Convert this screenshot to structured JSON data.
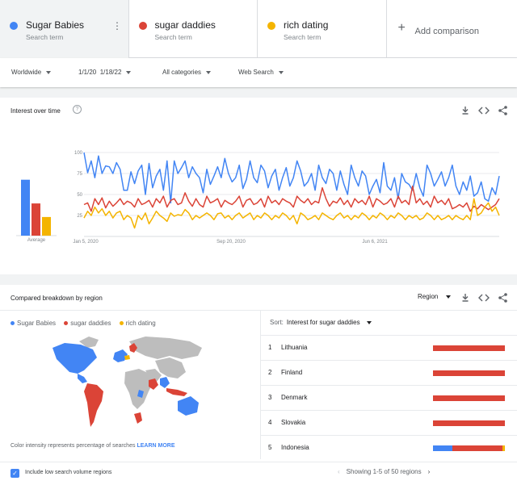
{
  "terms": [
    {
      "name": "Sugar Babies",
      "sub": "Search term",
      "color": "#4285f4"
    },
    {
      "name": "sugar daddies",
      "sub": "Search term",
      "color": "#db4437"
    },
    {
      "name": "rich dating",
      "sub": "Search term",
      "color": "#f4b400"
    }
  ],
  "add_comparison": "Add comparison",
  "filters": {
    "region": "Worldwide",
    "date_start": "1/1/20",
    "date_end": "1/18/22",
    "category": "All categories",
    "search_type": "Web Search"
  },
  "interest": {
    "title": "Interest over time",
    "help": "?",
    "average_label": "Average",
    "averages": [
      66,
      38,
      22
    ],
    "chart_data": {
      "type": "line",
      "x_ticks": [
        "Jan 5, 2020",
        "Sep 20, 2020",
        "Jun 6, 2021"
      ],
      "y_ticks": [
        100,
        75,
        50,
        25
      ],
      "ylim": [
        0,
        100
      ],
      "series": [
        {
          "name": "Sugar Babies",
          "color": "#4285f4",
          "values": [
            100,
            76,
            90,
            70,
            96,
            75,
            84,
            83,
            75,
            88,
            80,
            55,
            55,
            77,
            63,
            78,
            85,
            50,
            87,
            58,
            72,
            80,
            55,
            90,
            40,
            90,
            75,
            82,
            90,
            70,
            83,
            75,
            70,
            52,
            80,
            62,
            72,
            83,
            70,
            93,
            75,
            65,
            70,
            85,
            57,
            68,
            90,
            70,
            64,
            85,
            78,
            58,
            72,
            80,
            55,
            70,
            82,
            60,
            70,
            90,
            78,
            60,
            65,
            75,
            55,
            85,
            70,
            63,
            80,
            75,
            55,
            78,
            62,
            50,
            85,
            70,
            60,
            78,
            72,
            50,
            60,
            68,
            52,
            88,
            60,
            55,
            70,
            45,
            75,
            65,
            62,
            55,
            75,
            58,
            48,
            85,
            75,
            60,
            68,
            77,
            60,
            70,
            85,
            60,
            50,
            65,
            55,
            72,
            48,
            52,
            65,
            45,
            42,
            58,
            50,
            72
          ]
        },
        {
          "name": "sugar daddies",
          "color": "#db4437",
          "values": [
            38,
            40,
            30,
            45,
            38,
            46,
            34,
            42,
            36,
            40,
            45,
            38,
            42,
            40,
            35,
            45,
            38,
            40,
            43,
            35,
            45,
            40,
            48,
            35,
            43,
            45,
            38,
            40,
            52,
            42,
            36,
            45,
            38,
            35,
            48,
            40,
            42,
            45,
            35,
            43,
            40,
            38,
            42,
            48,
            35,
            43,
            45,
            38,
            40,
            45,
            35,
            48,
            40,
            43,
            38,
            45,
            42,
            40,
            35,
            48,
            43,
            40,
            45,
            38,
            42,
            40,
            58,
            45,
            36,
            42,
            40,
            46,
            38,
            43,
            35,
            45,
            40,
            43,
            38,
            48,
            35,
            45,
            42,
            38,
            40,
            45,
            35,
            48,
            40,
            43,
            38,
            60,
            40,
            45,
            38,
            42,
            35,
            48,
            40,
            43,
            38,
            45,
            33,
            35,
            38,
            35,
            40,
            30,
            36,
            33,
            38,
            35,
            32,
            35,
            38,
            45
          ]
        },
        {
          "name": "rich dating",
          "color": "#f4b400",
          "values": [
            22,
            30,
            25,
            35,
            28,
            33,
            25,
            30,
            22,
            28,
            30,
            20,
            25,
            22,
            10,
            25,
            20,
            28,
            15,
            22,
            30,
            25,
            22,
            18,
            28,
            24,
            26,
            25,
            32,
            28,
            20,
            25,
            22,
            25,
            28,
            25,
            20,
            27,
            28,
            22,
            25,
            20,
            25,
            28,
            22,
            25,
            28,
            20,
            25,
            22,
            28,
            25,
            20,
            25,
            22,
            28,
            25,
            20,
            25,
            15,
            28,
            25,
            20,
            22,
            25,
            20,
            28,
            25,
            22,
            20,
            25,
            28,
            22,
            25,
            20,
            25,
            22,
            28,
            25,
            20,
            25,
            22,
            28,
            25,
            20,
            25,
            22,
            28,
            25,
            20,
            25,
            22,
            25,
            20,
            22,
            28,
            25,
            20,
            25,
            20,
            22,
            25,
            20,
            25,
            22,
            20,
            25,
            20,
            45,
            25,
            28,
            35,
            40,
            30,
            35,
            25
          ]
        }
      ]
    }
  },
  "breakdown": {
    "title": "Compared breakdown by region",
    "region_select": "Region",
    "legend": [
      "Sugar Babies",
      "sugar daddies",
      "rich dating"
    ],
    "sort_label": "Sort:",
    "sort_value": "Interest for sugar daddies",
    "rows": [
      {
        "rank": "1",
        "name": "Lithuania",
        "shares": [
          0,
          100,
          0
        ]
      },
      {
        "rank": "2",
        "name": "Finland",
        "shares": [
          0,
          100,
          0
        ]
      },
      {
        "rank": "3",
        "name": "Denmark",
        "shares": [
          0,
          100,
          0
        ]
      },
      {
        "rank": "4",
        "name": "Slovakia",
        "shares": [
          0,
          100,
          0
        ]
      },
      {
        "rank": "5",
        "name": "Indonesia",
        "shares": [
          27,
          70,
          3
        ]
      }
    ],
    "note": "Color intensity represents percentage of searches",
    "learn_more": "LEARN MORE",
    "low_volume_label": "Include low search volume regions",
    "pager": "Showing 1-5 of 50 regions"
  }
}
